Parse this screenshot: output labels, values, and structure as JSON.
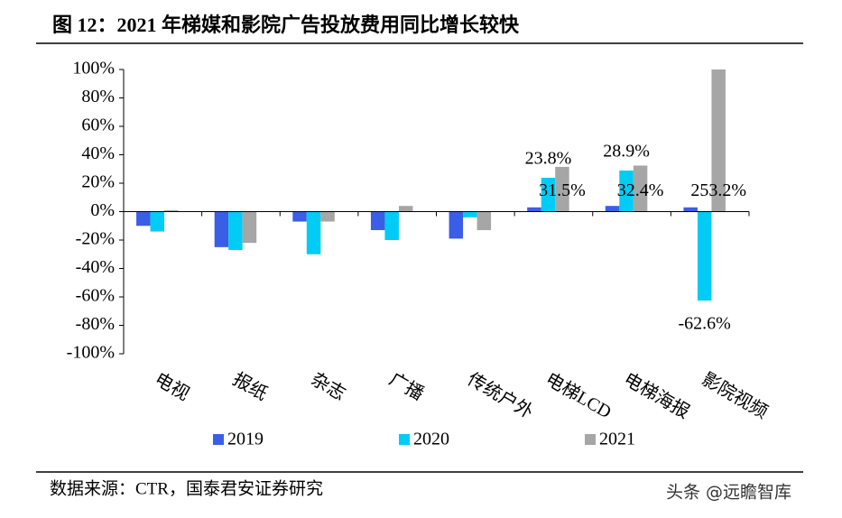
{
  "chart_data": {
    "type": "bar",
    "title": "图 12：2021 年梯媒和影院广告投放费用同比增长较快",
    "categories": [
      "电视",
      "报纸",
      "杂志",
      "广播",
      "传统户外",
      "电梯LCD",
      "电梯海报",
      "影院视频"
    ],
    "series": [
      {
        "name": "2019",
        "color": "#3b5ee6",
        "values": [
          -10,
          -25,
          -7,
          -13,
          -19,
          3,
          4,
          3
        ]
      },
      {
        "name": "2020",
        "color": "#00ccf5",
        "values": [
          -14,
          -27,
          -30,
          -20,
          -4,
          23.8,
          28.9,
          -62.6
        ],
        "value_labels": [
          null,
          null,
          null,
          null,
          null,
          "23.8%",
          "28.9%",
          "-62.6%"
        ]
      },
      {
        "name": "2021",
        "color": "#a6a6a6",
        "values": [
          1,
          -22,
          -7,
          4,
          -13,
          31.5,
          32.4,
          253.2
        ],
        "value_labels": [
          null,
          null,
          null,
          null,
          null,
          "31.5%",
          "32.4%",
          "253.2%"
        ]
      }
    ],
    "ylim": [
      -100,
      100
    ],
    "yticks": [
      {
        "value": -100,
        "label": "-100%"
      },
      {
        "value": -80,
        "label": "-80%"
      },
      {
        "value": -60,
        "label": "-60%"
      },
      {
        "value": -40,
        "label": "-40%"
      },
      {
        "value": -20,
        "label": "-20%"
      },
      {
        "value": 0,
        "label": "0%"
      },
      {
        "value": 20,
        "label": "20%"
      },
      {
        "value": 40,
        "label": "40%"
      },
      {
        "value": 60,
        "label": "60%"
      },
      {
        "value": 80,
        "label": "80%"
      },
      {
        "value": 100,
        "label": "100%"
      }
    ],
    "source": "数据来源：CTR，国泰君安证券研究",
    "watermark": "头条 @远瞻智库"
  }
}
